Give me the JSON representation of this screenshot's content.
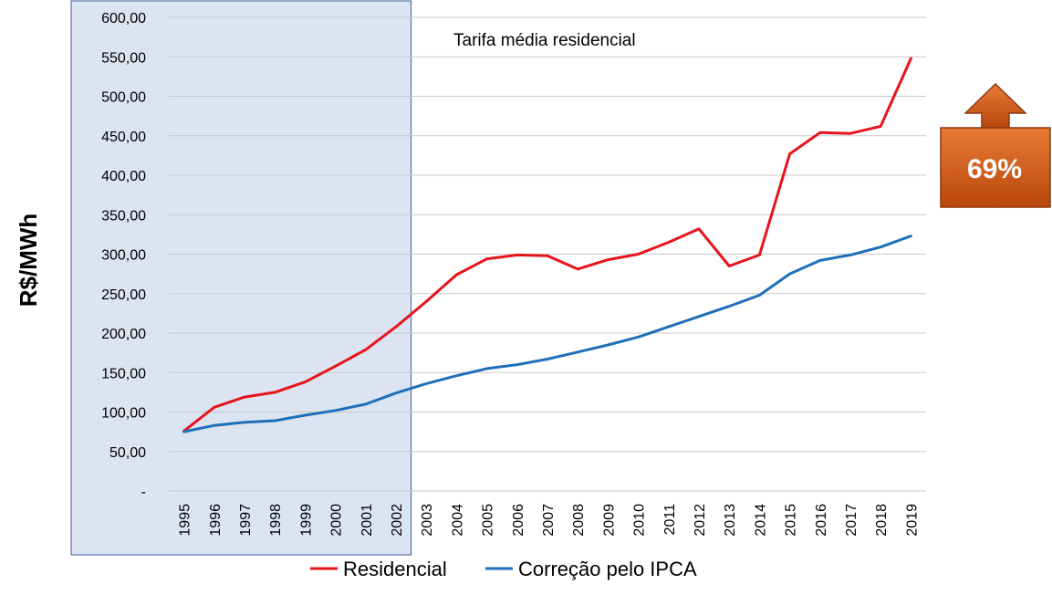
{
  "chart_data": {
    "type": "line",
    "title": "Tarifa média residencial",
    "ylabel": "R$/MWh",
    "xlabel": "",
    "ylim": [
      0,
      600
    ],
    "y_ticks": [
      "-",
      "50,00",
      "100,00",
      "150,00",
      "200,00",
      "250,00",
      "300,00",
      "350,00",
      "400,00",
      "450,00",
      "500,00",
      "550,00",
      "600,00"
    ],
    "categories": [
      "1995",
      "1996",
      "1997",
      "1998",
      "1999",
      "2000",
      "2001",
      "2002",
      "2003",
      "2004",
      "2005",
      "2006",
      "2007",
      "2008",
      "2009",
      "2010",
      "2011",
      "2012",
      "2013",
      "2014",
      "2015",
      "2016",
      "2017",
      "2018",
      "2019"
    ],
    "series": [
      {
        "name": "Residencial",
        "color": "#e8141c",
        "values": [
          76,
          106,
          119,
          125,
          138,
          158,
          179,
          208,
          240,
          274,
          294,
          299,
          298,
          281,
          293,
          300,
          315,
          332,
          285,
          299,
          427,
          454,
          453,
          462,
          548
        ]
      },
      {
        "name": "Correção pelo IPCA",
        "color": "#1f6fb8",
        "values": [
          75,
          83,
          87,
          89,
          96,
          102,
          110,
          124,
          136,
          146,
          155,
          160,
          167,
          176,
          185,
          195,
          208,
          221,
          234,
          248,
          275,
          292,
          299,
          309,
          323
        ]
      }
    ],
    "highlight_range": [
      "1995",
      "2002"
    ],
    "highlight_color": "#dce4f2",
    "grid": true,
    "legend_position": "bottom"
  },
  "badge": {
    "text": "69%",
    "color": "#d9621c"
  }
}
